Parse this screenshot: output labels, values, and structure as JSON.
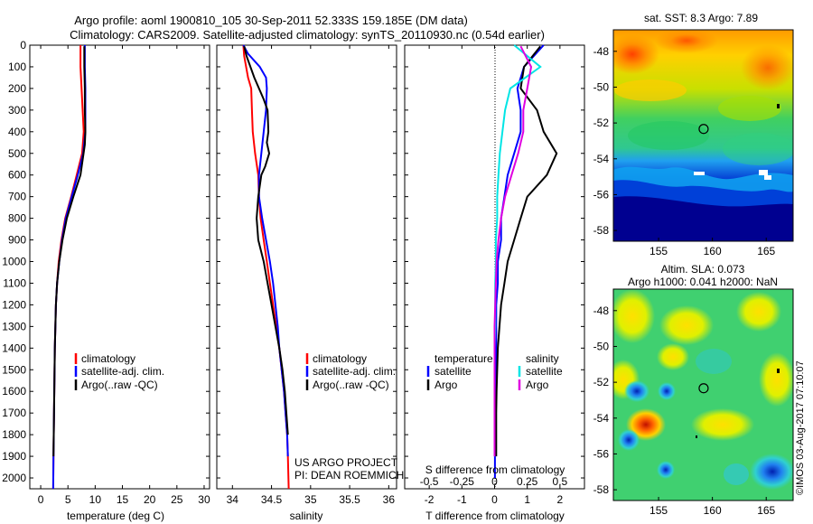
{
  "header": {
    "line1": "Argo profile: aoml 1900810_105 30-Sep-2011 52.333S 159.185E (DM data)",
    "line2": "Climatology: CARS2009. Satellite-adjusted climatology: synTS_20110930.nc (0.54d earlier)"
  },
  "chart_data": [
    {
      "type": "line",
      "panel": "temperature",
      "xlabel": "temperature (deg C)",
      "xlim": [
        -2,
        31
      ],
      "ylim": [
        2050,
        0
      ],
      "x_ticks": [
        0,
        5,
        10,
        15,
        20,
        25,
        30
      ],
      "y_ticks": [
        0,
        100,
        200,
        300,
        400,
        500,
        600,
        700,
        800,
        900,
        1000,
        1100,
        1200,
        1300,
        1400,
        1500,
        1600,
        1700,
        1800,
        1900,
        2000
      ],
      "series": [
        {
          "name": "climatology",
          "color": "#ff0000",
          "x": [
            7.3,
            7.3,
            7.5,
            7.7,
            7.9,
            7.6,
            6.6,
            5.6,
            4.5,
            3.8,
            3.3,
            3.0,
            2.8,
            2.7,
            2.6,
            2.55,
            2.5,
            2.45,
            2.4,
            2.35,
            2.3
          ],
          "y": [
            0,
            100,
            200,
            300,
            400,
            500,
            600,
            700,
            800,
            900,
            1000,
            1100,
            1200,
            1300,
            1400,
            1500,
            1600,
            1700,
            1800,
            1900,
            2050
          ]
        },
        {
          "name": "satellite-adj. clim.",
          "color": "#0000ff",
          "x": [
            8.1,
            8.1,
            8.2,
            8.2,
            8.2,
            7.8,
            6.8,
            5.7,
            4.6,
            3.9,
            3.4,
            3.0,
            2.8,
            2.7,
            2.6,
            2.55,
            2.5,
            2.45,
            2.4,
            2.35,
            2.3
          ],
          "y": [
            0,
            100,
            200,
            300,
            400,
            500,
            600,
            700,
            800,
            900,
            1000,
            1100,
            1200,
            1300,
            1400,
            1500,
            1600,
            1700,
            1800,
            1900,
            2050
          ]
        },
        {
          "name": "Argo(..raw -QC)",
          "color": "#000000",
          "x": [
            8.0,
            8.0,
            8.1,
            8.1,
            8.2,
            8.1,
            7.3,
            6.0,
            4.8,
            4.0,
            3.4,
            3.0,
            2.8,
            2.7,
            2.6,
            2.55,
            2.5,
            2.45,
            2.4,
            2.35
          ],
          "y": [
            5,
            100,
            200,
            300,
            400,
            460,
            600,
            700,
            800,
            900,
            1000,
            1100,
            1200,
            1300,
            1400,
            1500,
            1600,
            1700,
            1800,
            1900
          ]
        }
      ],
      "legend": [
        "climatology",
        "satellite-adj. clim.",
        "Argo(..raw -QC)"
      ]
    },
    {
      "type": "line",
      "panel": "salinity",
      "xlabel": "salinity",
      "xlim": [
        33.8,
        36.1
      ],
      "ylim": [
        2050,
        0
      ],
      "x_ticks": [
        34,
        34.5,
        35,
        35.5,
        36
      ],
      "series": [
        {
          "name": "climatology",
          "color": "#ff0000",
          "x": [
            34.14,
            34.15,
            34.2,
            34.24,
            34.25,
            34.26,
            34.29,
            34.33,
            34.34,
            34.36,
            34.4,
            34.44,
            34.48,
            34.52,
            34.56,
            34.6,
            34.63,
            34.66,
            34.68,
            34.7,
            34.71,
            34.72
          ],
          "y": [
            0,
            50,
            150,
            200,
            300,
            400,
            500,
            600,
            700,
            800,
            900,
            1000,
            1100,
            1200,
            1300,
            1400,
            1500,
            1600,
            1700,
            1800,
            1900,
            2050
          ]
        },
        {
          "name": "satellite-adj. clim.",
          "color": "#0000ff",
          "x": [
            34.14,
            34.2,
            34.35,
            34.43,
            34.44,
            34.43,
            34.4,
            34.37,
            34.34,
            34.34,
            34.38,
            34.43,
            34.48,
            34.52,
            34.55,
            34.58,
            34.6,
            34.63,
            34.66,
            34.68,
            34.7,
            34.71
          ],
          "y": [
            0,
            40,
            100,
            150,
            200,
            300,
            400,
            500,
            600,
            700,
            800,
            900,
            1000,
            1100,
            1200,
            1300,
            1400,
            1500,
            1600,
            1700,
            1800,
            1900
          ]
        },
        {
          "name": "Argo(..raw -QC)",
          "color": "#000000",
          "x": [
            34.15,
            34.18,
            34.28,
            34.4,
            34.45,
            34.46,
            34.44,
            34.47,
            34.42,
            34.37,
            34.33,
            34.31,
            34.33,
            34.4,
            34.45,
            34.5,
            34.55,
            34.6,
            34.64,
            34.67,
            34.69,
            34.71
          ],
          "y": [
            5,
            50,
            150,
            250,
            300,
            400,
            450,
            500,
            560,
            600,
            700,
            800,
            900,
            1000,
            1100,
            1200,
            1300,
            1400,
            1500,
            1600,
            1700,
            1800
          ]
        }
      ],
      "legend": [
        "climatology",
        "satellite-adj. clim.",
        "Argo(..raw -QC)"
      ],
      "annotation": [
        "US ARGO PROJECT",
        "PI: DEAN ROEMMICH"
      ]
    },
    {
      "type": "line",
      "panel": "difference",
      "xlabel": "T difference from climatology",
      "xlabel_top": "S difference from climatology",
      "xlim": [
        -2.75,
        2.75
      ],
      "x_ticks": [
        -2,
        -1,
        0,
        1,
        2
      ],
      "x_ticks_s": [
        -0.5,
        -0.25,
        0,
        0.25,
        0.5
      ],
      "x_tick_labels_s": [
        "-0.5",
        "-0.25",
        "0",
        "0.25",
        "0.5"
      ],
      "ylim": [
        2050,
        0
      ],
      "legend_temperature": [
        "temperature",
        "satellite",
        "Argo"
      ],
      "legend_salinity": [
        "salinity",
        "satellite",
        "Argo"
      ],
      "series": [
        {
          "name": "temperature satellite",
          "color": "#0000ff",
          "x": [
            1.5,
            0.9,
            0.7,
            0.8,
            0.8,
            0.6,
            0.4,
            0.3,
            0.2,
            0.2,
            0.1,
            0.1,
            0.05,
            0.05,
            0.05,
            0.05,
            0.03,
            0.02,
            0.02,
            0.01,
            0.01
          ],
          "y": [
            0,
            100,
            200,
            300,
            400,
            500,
            600,
            700,
            800,
            900,
            1000,
            1100,
            1200,
            1300,
            1400,
            1500,
            1600,
            1700,
            1800,
            1900,
            2000
          ]
        },
        {
          "name": "temperature Argo",
          "color": "#000000",
          "x": [
            1.4,
            0.9,
            0.8,
            1.3,
            1.5,
            1.9,
            1.6,
            1.0,
            0.8,
            0.6,
            0.4,
            0.3,
            0.2,
            0.15,
            0.1,
            0.08,
            0.06,
            0.05,
            0.05,
            0.05
          ],
          "y": [
            5,
            100,
            200,
            300,
            400,
            500,
            600,
            700,
            800,
            900,
            1000,
            1100,
            1200,
            1300,
            1400,
            1500,
            1600,
            1700,
            1800,
            1900
          ]
        },
        {
          "name": "salinity satellite",
          "color": "#00e5e5",
          "x": [
            0.15,
            0.35,
            0.12,
            0.08,
            0.06,
            0.04,
            0.03,
            0.02,
            0.02,
            0.01,
            0.01,
            0.005,
            0.005,
            0.005,
            0.0,
            0.0,
            0.0,
            0.0,
            0.0,
            0.0
          ],
          "y": [
            0,
            100,
            200,
            300,
            400,
            500,
            600,
            700,
            800,
            900,
            1000,
            1100,
            1200,
            1300,
            1400,
            1500,
            1600,
            1700,
            1800,
            1900
          ]
        },
        {
          "name": "salinity Argo",
          "color": "#e000e0",
          "x": [
            0.2,
            0.28,
            0.25,
            0.22,
            0.22,
            0.18,
            0.13,
            0.08,
            0.05,
            0.03,
            0.015,
            0.01,
            0.005,
            0.0,
            0.0,
            0.0,
            0.0,
            0.0,
            0.0,
            0.0
          ],
          "y": [
            5,
            100,
            200,
            300,
            400,
            500,
            600,
            700,
            800,
            900,
            1000,
            1100,
            1200,
            1300,
            1400,
            1500,
            1600,
            1700,
            1800,
            1900
          ]
        }
      ]
    },
    {
      "type": "heatmap",
      "panel": "sst-map",
      "title": "sat. SST: 8.3  Argo: 7.89",
      "x_ticks": [
        155,
        160,
        165
      ],
      "y_ticks": [
        -48,
        -50,
        -52,
        -54,
        -56,
        -58
      ],
      "xlim": [
        150.8,
        167.5
      ],
      "ylim": [
        -58.6,
        -46.8
      ],
      "argo_position": [
        159.185,
        -52.333
      ]
    },
    {
      "type": "heatmap",
      "panel": "sla-map",
      "title": "Altim. SLA: 0.073",
      "subtitle": "Argo h1000: 0.041 h2000: NaN",
      "x_ticks": [
        155,
        160,
        165
      ],
      "y_ticks": [
        -48,
        -50,
        -52,
        -54,
        -56,
        -58
      ],
      "xlim": [
        150.8,
        167.5
      ],
      "ylim": [
        -58.6,
        -46.8
      ],
      "argo_position": [
        159.185,
        -52.333
      ]
    }
  ],
  "credit": "©IMOS 03-Aug-2017 07:10:07"
}
